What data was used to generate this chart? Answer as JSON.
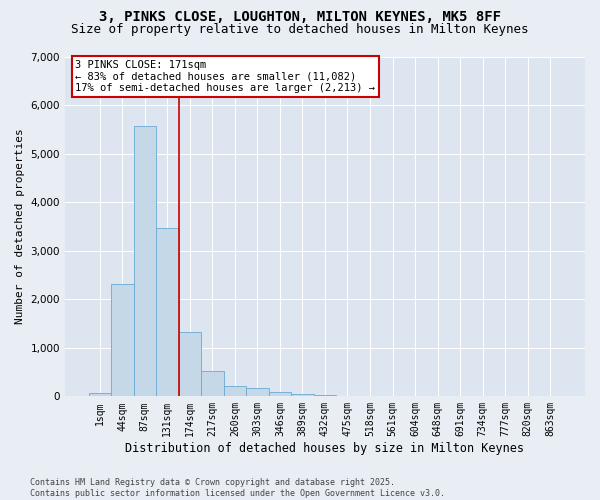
{
  "title_line1": "3, PINKS CLOSE, LOUGHTON, MILTON KEYNES, MK5 8FF",
  "title_line2": "Size of property relative to detached houses in Milton Keynes",
  "xlabel": "Distribution of detached houses by size in Milton Keynes",
  "ylabel": "Number of detached properties",
  "categories": [
    "1sqm",
    "44sqm",
    "87sqm",
    "131sqm",
    "174sqm",
    "217sqm",
    "260sqm",
    "303sqm",
    "346sqm",
    "389sqm",
    "432sqm",
    "475sqm",
    "518sqm",
    "561sqm",
    "604sqm",
    "648sqm",
    "691sqm",
    "734sqm",
    "777sqm",
    "820sqm",
    "863sqm"
  ],
  "values": [
    60,
    2320,
    5560,
    3460,
    1320,
    530,
    210,
    175,
    90,
    55,
    35,
    0,
    0,
    0,
    0,
    0,
    0,
    0,
    0,
    0,
    0
  ],
  "bar_color": "#c5d8e8",
  "bar_edge_color": "#6aaad4",
  "vline_x_idx": 3.5,
  "vline_color": "#cc0000",
  "annotation_text": "3 PINKS CLOSE: 171sqm\n← 83% of detached houses are smaller (11,082)\n17% of semi-detached houses are larger (2,213) →",
  "annotation_box_color": "#cc0000",
  "ylim": [
    0,
    7000
  ],
  "yticks": [
    0,
    1000,
    2000,
    3000,
    4000,
    5000,
    6000,
    7000
  ],
  "background_color": "#e8eef4",
  "plot_background": "#dce5f0",
  "grid_color": "#ffffff",
  "footnote": "Contains HM Land Registry data © Crown copyright and database right 2025.\nContains public sector information licensed under the Open Government Licence v3.0.",
  "title_fontsize": 10,
  "subtitle_fontsize": 9,
  "tick_fontsize": 7,
  "ylabel_fontsize": 8,
  "xlabel_fontsize": 8.5,
  "annotation_fontsize": 7.5,
  "footnote_fontsize": 6
}
